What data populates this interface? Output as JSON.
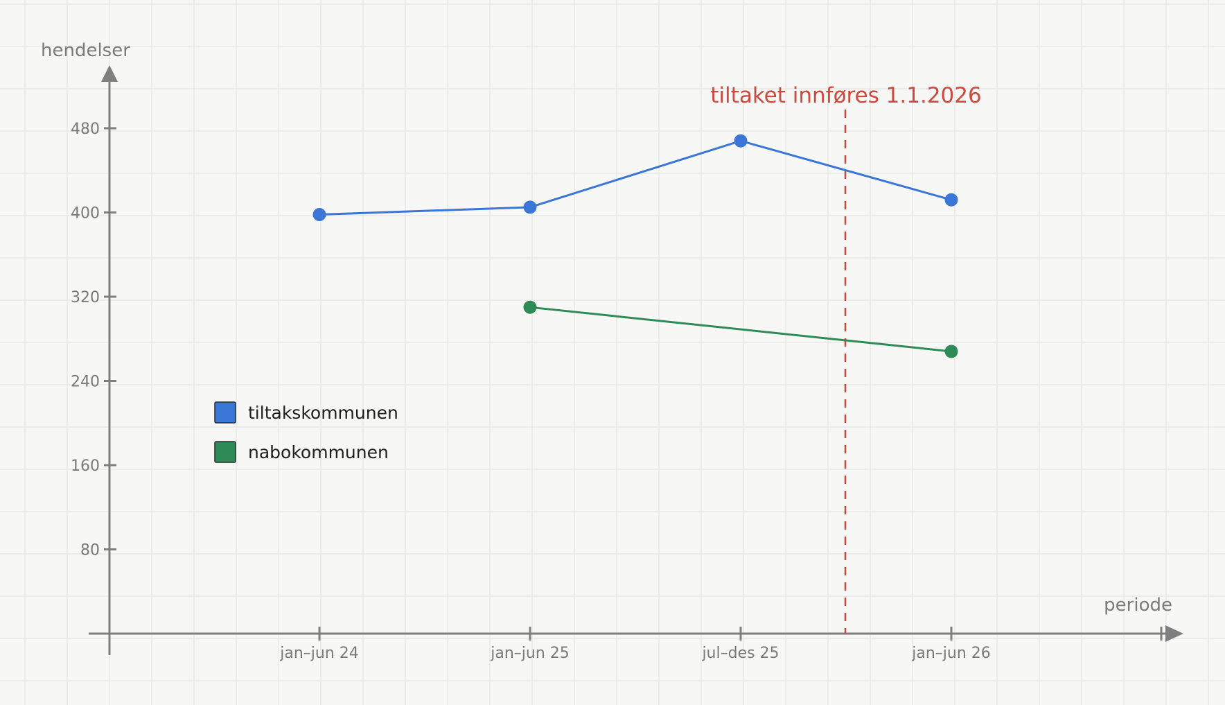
{
  "chart_data": {
    "type": "line",
    "title": "",
    "xlabel": "periode",
    "ylabel": "hendelser",
    "categories": [
      "jan–jun 24",
      "jan–jun 25",
      "jul–des 25",
      "jan–jun 26"
    ],
    "y_ticks": [
      "80",
      "160",
      "240",
      "320",
      "400",
      "480"
    ],
    "ylim": [
      0,
      520
    ],
    "grid": true,
    "legend_position": "left-middle",
    "series": [
      {
        "name": "tiltakskommunen",
        "color": "#3a76d6",
        "values": [
          398,
          405,
          468,
          412
        ]
      },
      {
        "name": "nabokommunen",
        "color": "#2e8b57",
        "values": [
          null,
          310,
          null,
          268
        ]
      }
    ],
    "annotation": {
      "text": "tiltaket innføres 1.1.2026",
      "color": "#cc4a3e",
      "line_style": "dashed"
    }
  }
}
